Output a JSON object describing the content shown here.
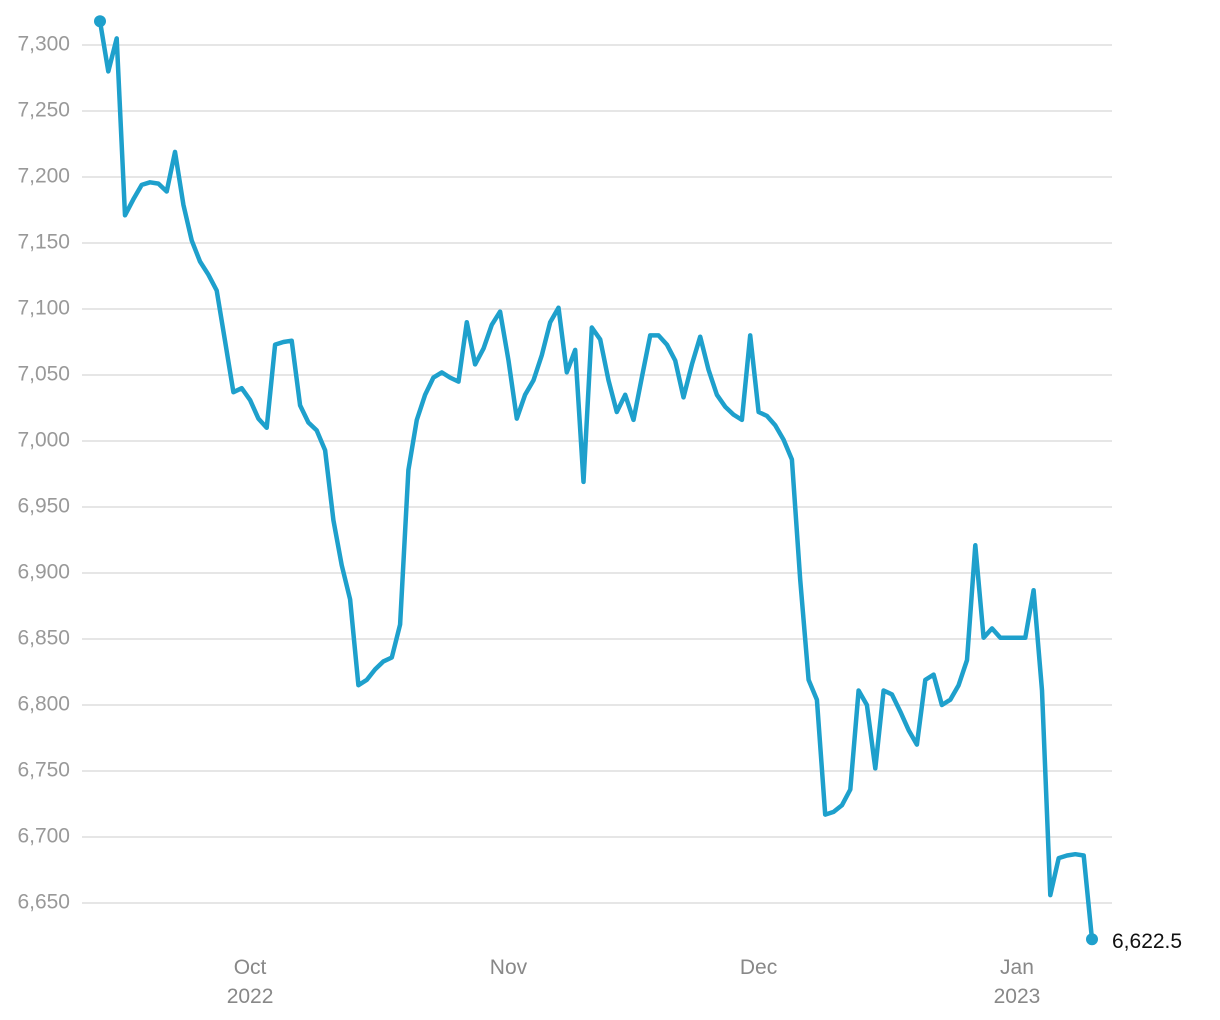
{
  "chart_data": {
    "type": "line",
    "categories": [
      null,
      null,
      null,
      null,
      null,
      null,
      null,
      null,
      null,
      null,
      null,
      null,
      null,
      null,
      null,
      null,
      null,
      null,
      "Oct\n2022",
      null,
      null,
      null,
      null,
      null,
      null,
      null,
      null,
      null,
      null,
      null,
      null,
      null,
      null,
      null,
      null,
      null,
      null,
      null,
      null,
      null,
      null,
      null,
      null,
      null,
      null,
      null,
      null,
      null,
      null,
      "Nov",
      null,
      null,
      null,
      null,
      null,
      null,
      null,
      null,
      null,
      null,
      null,
      null,
      null,
      null,
      null,
      null,
      null,
      null,
      null,
      null,
      null,
      null,
      null,
      null,
      null,
      null,
      null,
      null,
      null,
      "Dec",
      null,
      null,
      null,
      null,
      null,
      null,
      null,
      null,
      null,
      null,
      null,
      null,
      null,
      null,
      null,
      null,
      null,
      null,
      null,
      null,
      null,
      null,
      null,
      null,
      null,
      null,
      null,
      null,
      null,
      null,
      "Jan\n2023",
      null,
      null,
      null,
      null,
      null,
      null,
      null,
      null,
      null
    ],
    "series": [
      {
        "color": "#1ea0cc",
        "values": [
          7318,
          7280,
          7305,
          7171,
          7183,
          7194,
          7196,
          7195,
          7189,
          7219,
          7179,
          7152,
          7136,
          7126,
          7114,
          7076,
          7037,
          7040,
          7031,
          7017,
          7010,
          7073,
          7075,
          7076,
          7027,
          7014,
          7008,
          6993,
          6940,
          6906,
          6880,
          6815,
          6819,
          6827,
          6833,
          6836,
          6861,
          6978,
          7016,
          7035,
          7048,
          7052,
          7048,
          7045,
          7090,
          7058,
          7070,
          7088,
          7098,
          7061,
          7017,
          7035,
          7046,
          7065,
          7090,
          7101,
          7052,
          7069,
          6969,
          7086,
          7077,
          7046,
          7022,
          7035,
          7016,
          7048,
          7080,
          7080,
          7073,
          7061,
          7033,
          7058,
          7079,
          7054,
          7035,
          7026,
          7020,
          7016,
          7080,
          7022,
          7019,
          7012,
          7001,
          6986,
          6895,
          6819,
          6804,
          6717,
          6719,
          6724,
          6736,
          6811,
          6800,
          6752,
          6811,
          6808,
          6795,
          6781,
          6770,
          6819,
          6823,
          6800,
          6804,
          6815,
          6834,
          6921,
          6851,
          6858,
          6851,
          6851,
          6851,
          6851,
          6887,
          6811,
          6656,
          6684,
          6686,
          6687,
          6686,
          6622.5
        ],
        "value_labels": [
          null,
          null,
          null,
          null,
          null,
          null,
          null,
          null,
          null,
          null,
          null,
          null,
          null,
          null,
          null,
          null,
          null,
          null,
          null,
          null,
          null,
          null,
          null,
          null,
          null,
          null,
          null,
          null,
          null,
          null,
          null,
          null,
          null,
          null,
          null,
          null,
          null,
          null,
          null,
          null,
          null,
          null,
          null,
          null,
          null,
          null,
          null,
          null,
          null,
          null,
          null,
          null,
          null,
          null,
          null,
          null,
          null,
          null,
          null,
          null,
          null,
          null,
          null,
          null,
          null,
          null,
          null,
          null,
          null,
          null,
          null,
          null,
          null,
          null,
          null,
          null,
          null,
          null,
          null,
          null,
          null,
          null,
          null,
          null,
          null,
          null,
          null,
          null,
          null,
          null,
          null,
          null,
          null,
          null,
          null,
          null,
          null,
          null,
          null,
          null,
          null,
          null,
          null,
          null,
          null,
          null,
          null,
          null,
          null,
          null,
          null,
          null,
          null,
          null,
          null,
          null,
          null,
          null,
          null,
          "6,622.5"
        ]
      }
    ],
    "ylim": [
      6620,
      7320
    ],
    "yticks": [
      {
        "value": 6650,
        "label": "6,650"
      },
      {
        "value": 6700,
        "label": "6,700"
      },
      {
        "value": 6750,
        "label": "6,750"
      },
      {
        "value": 6800,
        "label": "6,800"
      },
      {
        "value": 6850,
        "label": "6,850"
      },
      {
        "value": 6900,
        "label": "6,900"
      },
      {
        "value": 6950,
        "label": "6,950"
      },
      {
        "value": 7000,
        "label": "7,000"
      },
      {
        "value": 7050,
        "label": "7,050"
      },
      {
        "value": 7100,
        "label": "7,100"
      },
      {
        "value": 7150,
        "label": "7,150"
      },
      {
        "value": 7200,
        "label": "7,200"
      },
      {
        "value": 7250,
        "label": "7,250"
      },
      {
        "value": 7300,
        "label": "7,300"
      }
    ],
    "grid": true
  }
}
